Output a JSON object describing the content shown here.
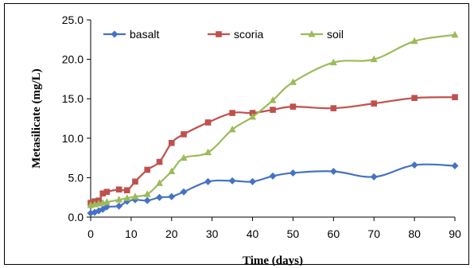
{
  "chart_data": {
    "type": "line",
    "title": "",
    "xlabel": "Time (days)",
    "ylabel": "Metasilicate (mg/L)",
    "xlim": [
      0,
      90
    ],
    "ylim": [
      0,
      25
    ],
    "x_ticks": [
      "0",
      "10",
      "20",
      "30",
      "40",
      "50",
      "60",
      "70",
      "80",
      "90"
    ],
    "y_ticks": [
      "0.0",
      "5.0",
      "10.0",
      "15.0",
      "20.0",
      "25.0"
    ],
    "grid": false,
    "legend_position": "top-left",
    "series": [
      {
        "name": "basalt",
        "color": "#4472C4",
        "marker": "diamond",
        "x": [
          0,
          1,
          2,
          3,
          4,
          7,
          9,
          11,
          14,
          17,
          20,
          23,
          29,
          35,
          40,
          45,
          50,
          60,
          70,
          80,
          90
        ],
        "y": [
          0.5,
          0.6,
          0.8,
          1.0,
          1.3,
          1.4,
          2.0,
          2.2,
          2.1,
          2.5,
          2.6,
          3.2,
          4.5,
          4.6,
          4.5,
          5.2,
          5.6,
          5.8,
          5.1,
          6.6,
          6.5
        ]
      },
      {
        "name": "scoria",
        "color": "#C0504D",
        "marker": "square",
        "x": [
          0,
          1,
          2,
          3,
          4,
          7,
          9,
          11,
          14,
          17,
          20,
          23,
          29,
          35,
          40,
          45,
          50,
          60,
          70,
          80,
          90
        ],
        "y": [
          1.8,
          2.0,
          2.1,
          3.0,
          3.2,
          3.5,
          3.4,
          4.5,
          6.0,
          7.0,
          9.4,
          10.5,
          12.0,
          13.2,
          13.2,
          13.6,
          14.0,
          13.8,
          14.4,
          15.1,
          15.2
        ]
      },
      {
        "name": "soil",
        "color": "#9BBB59",
        "marker": "triangle",
        "x": [
          0,
          1,
          2,
          3,
          4,
          7,
          9,
          11,
          14,
          17,
          20,
          23,
          29,
          35,
          40,
          45,
          50,
          60,
          70,
          80,
          90
        ],
        "y": [
          1.5,
          1.6,
          1.7,
          1.8,
          1.9,
          2.2,
          2.4,
          2.6,
          2.9,
          4.3,
          5.8,
          7.5,
          8.2,
          11.1,
          12.7,
          14.8,
          17.1,
          19.6,
          20.0,
          22.3,
          23.1
        ]
      }
    ]
  }
}
